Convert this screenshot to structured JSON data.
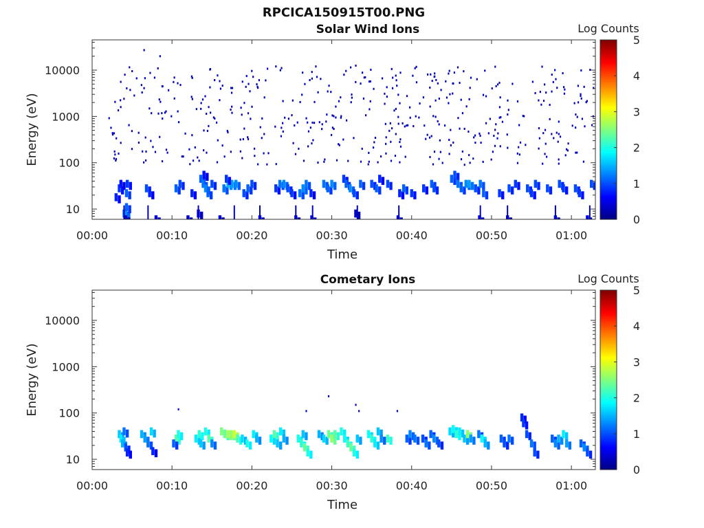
{
  "figure": {
    "title": "RPCICA150915T00.PNG"
  },
  "chart_data": [
    {
      "type": "heatmap",
      "title": "Solar Wind Ions",
      "xlabel": "Time",
      "ylabel": "Energy (eV)",
      "yscale": "log",
      "ylim": [
        6,
        45000
      ],
      "xlim_min": [
        0,
        63
      ],
      "x_tick_values": [
        0,
        10,
        20,
        30,
        40,
        50,
        60
      ],
      "x_tick_labels": [
        "00:00",
        "00:10",
        "00:20",
        "00:30",
        "00:40",
        "00:50",
        "01:00"
      ],
      "y_tick_values": [
        10,
        100,
        1000,
        10000
      ],
      "y_tick_labels": [
        "10",
        "100",
        "1000",
        "10000"
      ],
      "colorbar": {
        "label": "Log Counts",
        "range": [
          0,
          5
        ],
        "ticks": [
          "0",
          "1",
          "2",
          "3",
          "4",
          "5"
        ],
        "colormap": "jet"
      },
      "x_unit": "minutes",
      "cells": [
        [
          4.0,
          8,
          1.2
        ],
        [
          4.2,
          8,
          1.3
        ],
        [
          4.3,
          11,
          1.1
        ],
        [
          4.2,
          6,
          0.3
        ],
        [
          8.0,
          6,
          0.5
        ],
        [
          12.0,
          6,
          0.4
        ],
        [
          13.3,
          8,
          0.5
        ],
        [
          16.0,
          6,
          0.4
        ],
        [
          21.0,
          6,
          0.5
        ],
        [
          25.5,
          6,
          0.4
        ],
        [
          27.5,
          6,
          0.5
        ],
        [
          33.0,
          8,
          0.4
        ],
        [
          38.3,
          6,
          0.5
        ],
        [
          48.5,
          6,
          0.5
        ],
        [
          52.0,
          6,
          0.3
        ],
        [
          58.0,
          6,
          0.4
        ],
        [
          62.0,
          6,
          0.5
        ],
        [
          3.0,
          18,
          0.8
        ],
        [
          3.4,
          28,
          0.9
        ],
        [
          3.6,
          35,
          0.7
        ],
        [
          4.3,
          22,
          1.1
        ],
        [
          4.4,
          35,
          0.9
        ],
        [
          6.8,
          28,
          1.0
        ],
        [
          7.2,
          22,
          0.8
        ],
        [
          10.5,
          28,
          1.1
        ],
        [
          11.0,
          35,
          1.0
        ],
        [
          12.5,
          22,
          0.8
        ],
        [
          13.6,
          45,
          1.1
        ],
        [
          13.9,
          35,
          1.2
        ],
        [
          14.2,
          28,
          1.3
        ],
        [
          14.5,
          22,
          1.1
        ],
        [
          15.0,
          35,
          1.0
        ],
        [
          14.0,
          55,
          0.7
        ],
        [
          16.5,
          28,
          1.2
        ],
        [
          17.0,
          35,
          1.5
        ],
        [
          17.5,
          35,
          1.4
        ],
        [
          18.0,
          35,
          1.3
        ],
        [
          16.8,
          45,
          0.9
        ],
        [
          19.0,
          22,
          1.0
        ],
        [
          19.5,
          28,
          1.1
        ],
        [
          20.0,
          35,
          1.0
        ],
        [
          23.0,
          28,
          0.9
        ],
        [
          23.5,
          35,
          1.2
        ],
        [
          24.0,
          35,
          1.3
        ],
        [
          24.5,
          28,
          1.0
        ],
        [
          25.0,
          22,
          0.9
        ],
        [
          26.0,
          22,
          1.2
        ],
        [
          26.4,
          28,
          1.3
        ],
        [
          26.8,
          35,
          1.2
        ],
        [
          27.4,
          22,
          0.8
        ],
        [
          29.0,
          35,
          1.2
        ],
        [
          29.5,
          28,
          1.1
        ],
        [
          30.0,
          35,
          1.3
        ],
        [
          31.5,
          45,
          0.9
        ],
        [
          31.8,
          35,
          1.1
        ],
        [
          32.3,
          28,
          1.3
        ],
        [
          32.8,
          22,
          1.0
        ],
        [
          33.6,
          35,
          1.1
        ],
        [
          35.0,
          35,
          1.0
        ],
        [
          35.6,
          28,
          1.1
        ],
        [
          36.0,
          45,
          0.8
        ],
        [
          37.0,
          35,
          1.0
        ],
        [
          38.5,
          22,
          0.8
        ],
        [
          39.0,
          28,
          1.1
        ],
        [
          40.0,
          22,
          0.9
        ],
        [
          41.5,
          28,
          0.9
        ],
        [
          42.5,
          35,
          1.1
        ],
        [
          42.8,
          28,
          1.0
        ],
        [
          45.0,
          45,
          1.1
        ],
        [
          45.4,
          55,
          1.0
        ],
        [
          45.8,
          35,
          1.2
        ],
        [
          46.2,
          28,
          1.1
        ],
        [
          46.8,
          35,
          1.3
        ],
        [
          47.2,
          35,
          1.4
        ],
        [
          48.0,
          28,
          1.0
        ],
        [
          48.6,
          35,
          1.2
        ],
        [
          49.0,
          22,
          1.1
        ],
        [
          51.0,
          22,
          0.9
        ],
        [
          52.2,
          28,
          1.0
        ],
        [
          53.0,
          35,
          0.9
        ],
        [
          54.5,
          28,
          1.0
        ],
        [
          55.0,
          22,
          0.9
        ],
        [
          55.5,
          35,
          1.0
        ],
        [
          57.0,
          28,
          1.0
        ],
        [
          58.5,
          35,
          1.0
        ],
        [
          59.0,
          28,
          0.9
        ],
        [
          60.5,
          28,
          1.0
        ],
        [
          61.0,
          22,
          0.9
        ],
        [
          62.5,
          35,
          1.0
        ]
      ],
      "scatter": {
        "x_range": [
          2.0,
          63.0
        ],
        "energy_range": [
          90,
          12000
        ],
        "count": 480,
        "value": 0.3,
        "extra_points": [
          [
            6.5,
            27000
          ],
          [
            8.5,
            20000
          ],
          [
            5.0,
            9500
          ],
          [
            23.0,
            12000
          ],
          [
            33.0,
            12500
          ],
          [
            28.0,
            12000
          ],
          [
            38.5,
            280
          ],
          [
            26.5,
            110
          ],
          [
            3.0,
            120
          ],
          [
            52.0,
            1100
          ]
        ]
      }
    },
    {
      "type": "heatmap",
      "title": "Cometary Ions",
      "xlabel": "Time",
      "ylabel": "Energy (eV)",
      "yscale": "log",
      "ylim": [
        6,
        45000
      ],
      "xlim_min": [
        0,
        63
      ],
      "x_tick_values": [
        0,
        10,
        20,
        30,
        40,
        50,
        60
      ],
      "x_tick_labels": [
        "00:00",
        "00:10",
        "00:20",
        "00:30",
        "00:40",
        "00:50",
        "01:00"
      ],
      "y_tick_values": [
        10,
        100,
        1000,
        10000
      ],
      "y_tick_labels": [
        "10",
        "100",
        "1000",
        "10000"
      ],
      "colorbar": {
        "label": "Log Counts",
        "range": [
          0,
          5
        ],
        "ticks": [
          "0",
          "1",
          "2",
          "3",
          "4",
          "5"
        ],
        "colormap": "jet"
      },
      "x_unit": "minutes",
      "cells": [
        [
          3.4,
          35,
          1.6
        ],
        [
          3.6,
          28,
          1.8
        ],
        [
          3.8,
          22,
          1.5
        ],
        [
          4.0,
          40,
          1.2
        ],
        [
          4.2,
          18,
          1.0
        ],
        [
          4.4,
          14,
          0.8
        ],
        [
          6.2,
          35,
          1.5
        ],
        [
          6.6,
          28,
          1.4
        ],
        [
          7.0,
          22,
          1.2
        ],
        [
          7.4,
          40,
          1.7
        ],
        [
          7.6,
          15,
          0.8
        ],
        [
          10.5,
          28,
          2.3
        ],
        [
          10.8,
          35,
          2.0
        ],
        [
          10.2,
          22,
          1.1
        ],
        [
          13.0,
          28,
          1.8
        ],
        [
          13.4,
          35,
          2.1
        ],
        [
          13.6,
          22,
          1.6
        ],
        [
          14.2,
          40,
          2.0
        ],
        [
          14.6,
          28,
          2.3
        ],
        [
          15.0,
          22,
          1.3
        ],
        [
          16.2,
          40,
          2.5
        ],
        [
          16.6,
          35,
          2.4
        ],
        [
          17.0,
          35,
          2.7
        ],
        [
          17.4,
          35,
          2.6
        ],
        [
          17.8,
          35,
          2.9
        ],
        [
          18.2,
          28,
          2.2
        ],
        [
          18.8,
          28,
          1.7
        ],
        [
          19.4,
          22,
          2.0
        ],
        [
          20.2,
          35,
          1.8
        ],
        [
          20.6,
          28,
          1.5
        ],
        [
          22.4,
          28,
          1.9
        ],
        [
          22.8,
          35,
          2.3
        ],
        [
          23.2,
          22,
          1.6
        ],
        [
          23.6,
          40,
          1.8
        ],
        [
          24.0,
          28,
          1.5
        ],
        [
          25.8,
          28,
          2.0
        ],
        [
          26.2,
          22,
          2.1
        ],
        [
          26.6,
          18,
          2.4
        ],
        [
          27.0,
          14,
          2.0
        ],
        [
          26.4,
          35,
          1.6
        ],
        [
          28.4,
          35,
          1.5
        ],
        [
          29.0,
          28,
          1.7
        ],
        [
          29.6,
          35,
          2.4
        ],
        [
          30.0,
          28,
          2.6
        ],
        [
          30.4,
          35,
          2.3
        ],
        [
          31.2,
          40,
          2.0
        ],
        [
          31.6,
          28,
          1.9
        ],
        [
          32.0,
          22,
          2.2
        ],
        [
          32.4,
          18,
          2.4
        ],
        [
          32.8,
          14,
          2.0
        ],
        [
          33.2,
          28,
          1.6
        ],
        [
          34.6,
          35,
          1.9
        ],
        [
          35.0,
          28,
          2.1
        ],
        [
          35.4,
          22,
          1.8
        ],
        [
          35.8,
          40,
          1.6
        ],
        [
          36.2,
          28,
          1.3
        ],
        [
          37.0,
          28,
          2.2
        ],
        [
          39.4,
          28,
          1.1
        ],
        [
          39.8,
          35,
          1.3
        ],
        [
          40.4,
          28,
          1.2
        ],
        [
          41.4,
          28,
          1.0
        ],
        [
          41.8,
          22,
          1.2
        ],
        [
          42.4,
          35,
          1.1
        ],
        [
          42.8,
          28,
          1.3
        ],
        [
          43.4,
          22,
          1.0
        ],
        [
          44.8,
          40,
          1.7
        ],
        [
          45.2,
          45,
          1.9
        ],
        [
          45.6,
          35,
          2.1
        ],
        [
          46.0,
          40,
          1.8
        ],
        [
          46.6,
          28,
          1.6
        ],
        [
          47.0,
          35,
          2.6
        ],
        [
          47.4,
          28,
          1.4
        ],
        [
          48.4,
          35,
          1.2
        ],
        [
          48.8,
          28,
          1.9
        ],
        [
          49.2,
          22,
          1.5
        ],
        [
          51.2,
          28,
          1.1
        ],
        [
          51.6,
          22,
          1.0
        ],
        [
          52.2,
          28,
          1.2
        ],
        [
          53.8,
          80,
          0.8
        ],
        [
          54.0,
          60,
          0.9
        ],
        [
          54.4,
          35,
          1.0
        ],
        [
          55.0,
          22,
          1.2
        ],
        [
          55.4,
          14,
          1.0
        ],
        [
          57.6,
          28,
          1.1
        ],
        [
          58.0,
          22,
          1.3
        ],
        [
          58.4,
          28,
          1.5
        ],
        [
          59.0,
          35,
          1.8
        ],
        [
          59.4,
          22,
          1.4
        ],
        [
          61.2,
          22,
          1.1
        ],
        [
          61.6,
          18,
          1.3
        ],
        [
          62.0,
          14,
          1.0
        ]
      ],
      "scatter": {
        "x_range": [
          2.0,
          63.0
        ],
        "energy_range": [
          100,
          250
        ],
        "count": 0,
        "value": 0.4,
        "extra_points": [
          [
            10.8,
            120
          ],
          [
            26.8,
            110
          ],
          [
            29.6,
            230
          ],
          [
            33.0,
            150
          ],
          [
            33.4,
            110
          ],
          [
            38.2,
            110
          ]
        ]
      }
    }
  ]
}
